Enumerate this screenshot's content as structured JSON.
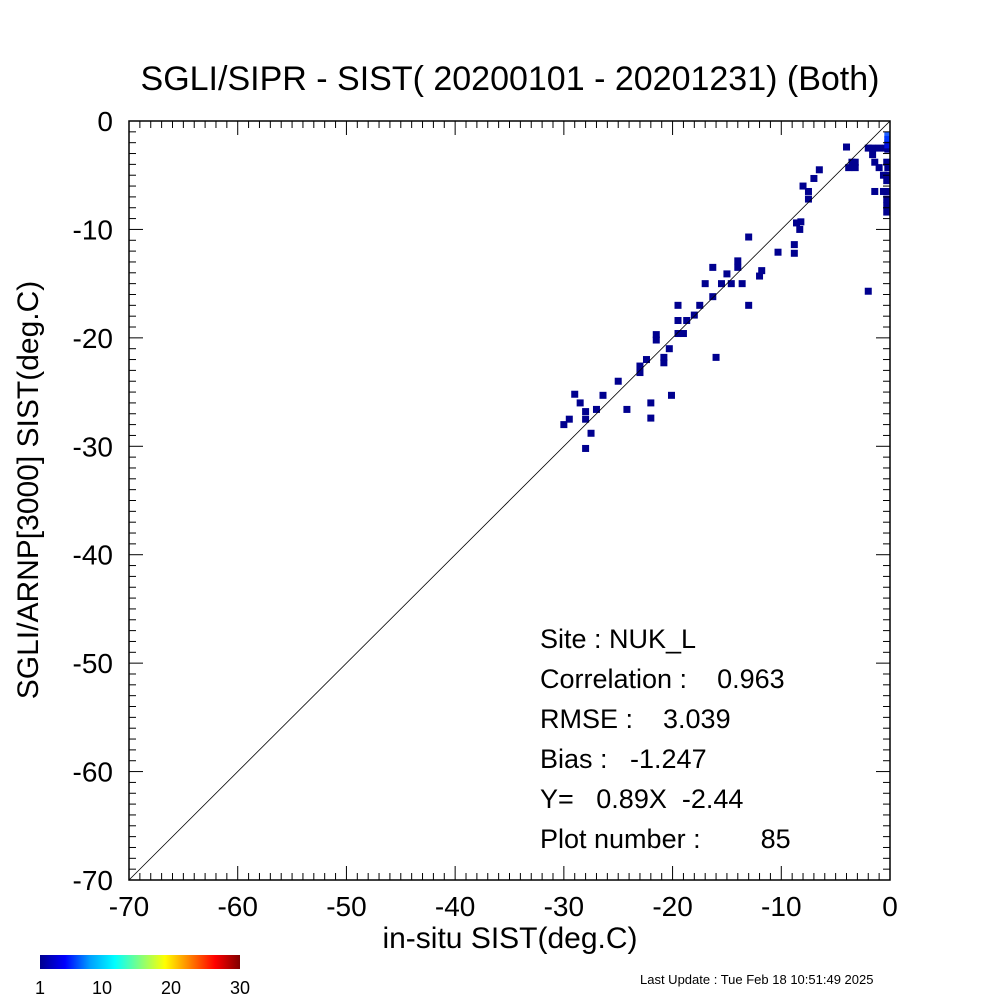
{
  "chart_data": {
    "type": "scatter",
    "title": "SGLI/SIPR - SIST( 20200101 - 20201231) (Both)",
    "xlabel": "in-situ SIST(deg.C)",
    "ylabel": "SGLI/ARNP[3000]     SIST(deg.C)",
    "xlim": [
      -70,
      0
    ],
    "ylim": [
      -70,
      0
    ],
    "major_ticks": [
      -70,
      -60,
      -50,
      -40,
      -30,
      -20,
      -10,
      0
    ],
    "tick_labels": [
      "-70",
      "-60",
      "-50",
      "-40",
      "-30",
      "-20",
      "-10",
      "0"
    ],
    "reference_line": "y = x",
    "grid": false,
    "point_color": "#00008f",
    "points": [
      [
        -30,
        -28
      ],
      [
        -29.5,
        -27.5
      ],
      [
        -29,
        -25.2
      ],
      [
        -28.5,
        -26
      ],
      [
        -28,
        -26.8
      ],
      [
        -28,
        -27.5
      ],
      [
        -28,
        -30.2
      ],
      [
        -27.5,
        -28.8
      ],
      [
        -27,
        -26.6
      ],
      [
        -26.4,
        -25.3
      ],
      [
        -25,
        -24
      ],
      [
        -24.2,
        -26.6
      ],
      [
        -23,
        -23.2
      ],
      [
        -23,
        -22.6
      ],
      [
        -22.4,
        -22
      ],
      [
        -22,
        -26
      ],
      [
        -22,
        -27.4
      ],
      [
        -21.5,
        -20.2
      ],
      [
        -21.5,
        -19.7
      ],
      [
        -20.8,
        -22.3
      ],
      [
        -20.8,
        -21.8
      ],
      [
        -20.3,
        -21
      ],
      [
        -20.1,
        -25.3
      ],
      [
        -19.5,
        -19.6
      ],
      [
        -19.5,
        -18.4
      ],
      [
        -19.5,
        -17
      ],
      [
        -19,
        -19.6
      ],
      [
        -18.7,
        -18.4
      ],
      [
        -18,
        -17.9
      ],
      [
        -17.5,
        -17
      ],
      [
        -17,
        -15
      ],
      [
        -16.3,
        -16.2
      ],
      [
        -16.3,
        -13.5
      ],
      [
        -16,
        -21.8
      ],
      [
        -15.5,
        -15
      ],
      [
        -15,
        -14.1
      ],
      [
        -14.6,
        -15
      ],
      [
        -14,
        -12.9
      ],
      [
        -14,
        -13.5
      ],
      [
        -13.6,
        -15
      ],
      [
        -13,
        -10.7
      ],
      [
        -13,
        -17
      ],
      [
        -12,
        -14.3
      ],
      [
        -11.8,
        -13.8
      ],
      [
        -10.3,
        -12.1
      ],
      [
        -8.8,
        -11.4
      ],
      [
        -8.8,
        -12.2
      ],
      [
        -8.6,
        -9.4
      ],
      [
        -8.3,
        -10
      ],
      [
        -8.2,
        -9.3
      ],
      [
        -8,
        -6
      ],
      [
        -7.5,
        -6.5
      ],
      [
        -7.5,
        -7.2
      ],
      [
        -7,
        -5.3
      ],
      [
        -6.5,
        -4.5
      ],
      [
        -4,
        -2.4
      ],
      [
        -3.8,
        -4.3
      ],
      [
        -3.5,
        -3.8
      ],
      [
        -3.2,
        -4.3
      ],
      [
        -3.2,
        -3.8
      ],
      [
        -2,
        -2.5
      ],
      [
        -2,
        -15.7
      ],
      [
        -1.6,
        -2.5
      ],
      [
        -1.6,
        -3.1
      ],
      [
        -1.4,
        -3.8
      ],
      [
        -1.4,
        -6.5
      ],
      [
        -1,
        -2.5
      ],
      [
        -1,
        -4.3
      ],
      [
        -0.6,
        -5
      ],
      [
        -0.6,
        -6.5
      ],
      [
        -0.4,
        -2.5
      ],
      [
        -0.3,
        -3.8
      ],
      [
        -0.3,
        -5.5
      ],
      [
        -0.3,
        -6.5
      ],
      [
        -0.3,
        -7.2
      ],
      [
        -0.3,
        -7.8
      ],
      [
        -0.3,
        -8.4
      ],
      [
        -0.2,
        -2
      ],
      [
        -0.2,
        -2.6
      ],
      [
        -0.2,
        -4.3
      ],
      [
        -0.2,
        -5
      ]
    ],
    "dense_points": [
      {
        "x": -0.2,
        "y": -1.3,
        "color": "#1f60ff"
      },
      {
        "x": -0.2,
        "y": -1.7,
        "color": "#0038ff"
      },
      {
        "x": -0.2,
        "y": -2.2,
        "color": "#0010e0"
      }
    ],
    "colorbar": {
      "colors": [
        "#00008f",
        "#0000ff",
        "#00a0ff",
        "#00ffff",
        "#80ff80",
        "#ffff00",
        "#ff8000",
        "#ff0000",
        "#800000"
      ],
      "range": [
        1,
        30
      ],
      "tick_labels": [
        "1",
        "10",
        "20",
        "30"
      ]
    }
  },
  "stats": {
    "site": "Site : NUK_L",
    "correlation": "Correlation :    0.963",
    "rmse": "RMSE :    3.039",
    "bias": "Bias :   -1.247",
    "regression": "Y=   0.89X  -2.44",
    "plot_number": "Plot number :        85"
  },
  "footer": {
    "last_update": "Last Update : Tue Feb 18 10:51:49 2025"
  }
}
